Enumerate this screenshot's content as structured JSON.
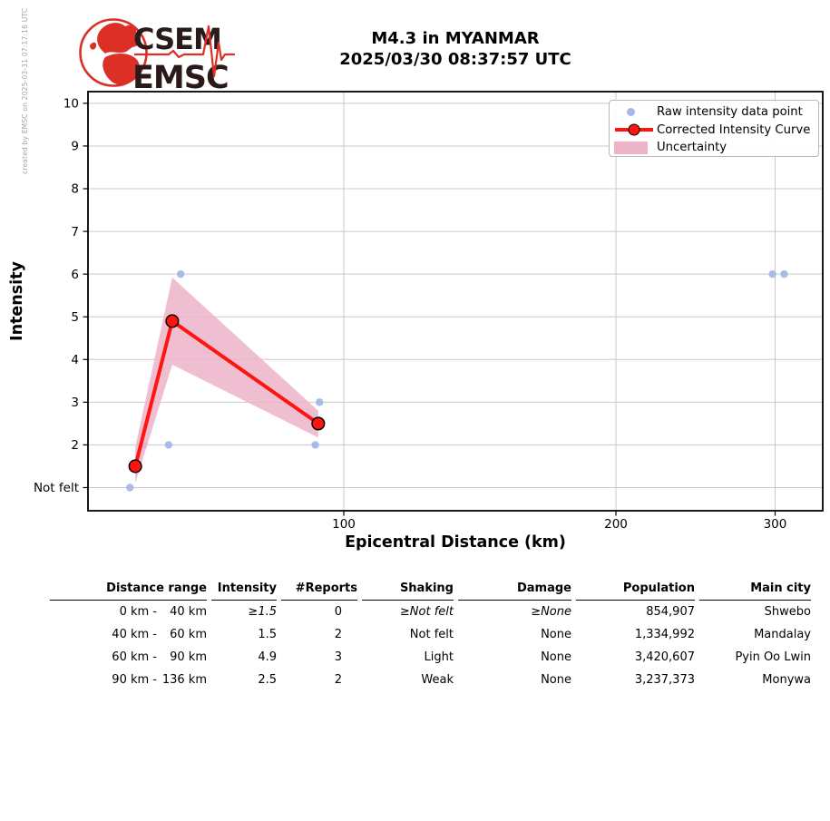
{
  "meta": {
    "created_by": "created by EMSC on 2025-03-31 07:17:16 UTC"
  },
  "logo": {
    "org1": "CSEM",
    "org2": "EMSC"
  },
  "title": {
    "line1": "M4.3 in MYANMAR",
    "line2": "2025/03/30 08:37:57 UTC"
  },
  "chart_data": {
    "type": "line",
    "title": "M4.3 in MYANMAR 2025/03/30 08:37:57 UTC",
    "xlabel": "Epicentral Distance (km)",
    "ylabel": "Intensity",
    "x_scale": "log",
    "x_range_km": [
      52,
      339
    ],
    "y_range": [
      0.45,
      10.3
    ],
    "grid": true,
    "legend_position": "upper right",
    "x_ticks": [
      100,
      200,
      300
    ],
    "y_ticks": [
      {
        "value": 10,
        "label": "10"
      },
      {
        "value": 9,
        "label": "9"
      },
      {
        "value": 8,
        "label": "8"
      },
      {
        "value": 7,
        "label": "7"
      },
      {
        "value": 6,
        "label": "6"
      },
      {
        "value": 5,
        "label": "5"
      },
      {
        "value": 4,
        "label": "4"
      },
      {
        "value": 3,
        "label": "3"
      },
      {
        "value": 2,
        "label": "2"
      },
      {
        "value": 1,
        "label": "Not felt"
      }
    ],
    "series": [
      {
        "name": "Raw intensity data point",
        "type": "scatter",
        "color": "#a6b7e8",
        "points": [
          [
            58,
            1
          ],
          [
            60,
            2
          ],
          [
            64,
            2
          ],
          [
            66,
            6
          ],
          [
            93,
            2
          ],
          [
            94,
            3
          ],
          [
            298,
            6
          ],
          [
            307,
            6
          ]
        ]
      },
      {
        "name": "Corrected Intensity Curve",
        "type": "line",
        "color": "#ff1410",
        "marker_edge": "#000000",
        "points": [
          [
            58.8,
            1.5
          ],
          [
            64.6,
            4.9
          ],
          [
            93.7,
            2.5
          ]
        ]
      },
      {
        "name": "Uncertainty",
        "type": "band",
        "color": "#edb3c9",
        "upper": [
          [
            58.8,
            1.95
          ],
          [
            64.6,
            5.92
          ],
          [
            93.7,
            2.8
          ]
        ],
        "lower": [
          [
            58.8,
            1.1
          ],
          [
            64.6,
            3.88
          ],
          [
            93.7,
            2.17
          ]
        ]
      }
    ]
  },
  "table": {
    "headers": [
      "Distance range",
      "Intensity",
      "#Reports",
      "Shaking",
      "Damage",
      "Population",
      "Main city"
    ],
    "rows": [
      {
        "range_from": "0 km -",
        "range_to": "40 km",
        "intensity": "≥1.5",
        "reports": "0",
        "shaking": "≥Not felt",
        "damage": "≥None",
        "population": "854,907",
        "city": "Shwebo"
      },
      {
        "range_from": "40 km -",
        "range_to": "60 km",
        "intensity": "1.5",
        "reports": "2",
        "shaking": "Not felt",
        "damage": "None",
        "population": "1,334,992",
        "city": "Mandalay"
      },
      {
        "range_from": "60 km -",
        "range_to": "90 km",
        "intensity": "4.9",
        "reports": "3",
        "shaking": "Light",
        "damage": "None",
        "population": "3,420,607",
        "city": "Pyin Oo Lwin"
      },
      {
        "range_from": "90 km -",
        "range_to": "136 km",
        "intensity": "2.5",
        "reports": "2",
        "shaking": "Weak",
        "damage": "None",
        "population": "3,237,373",
        "city": "Monywa"
      }
    ]
  }
}
